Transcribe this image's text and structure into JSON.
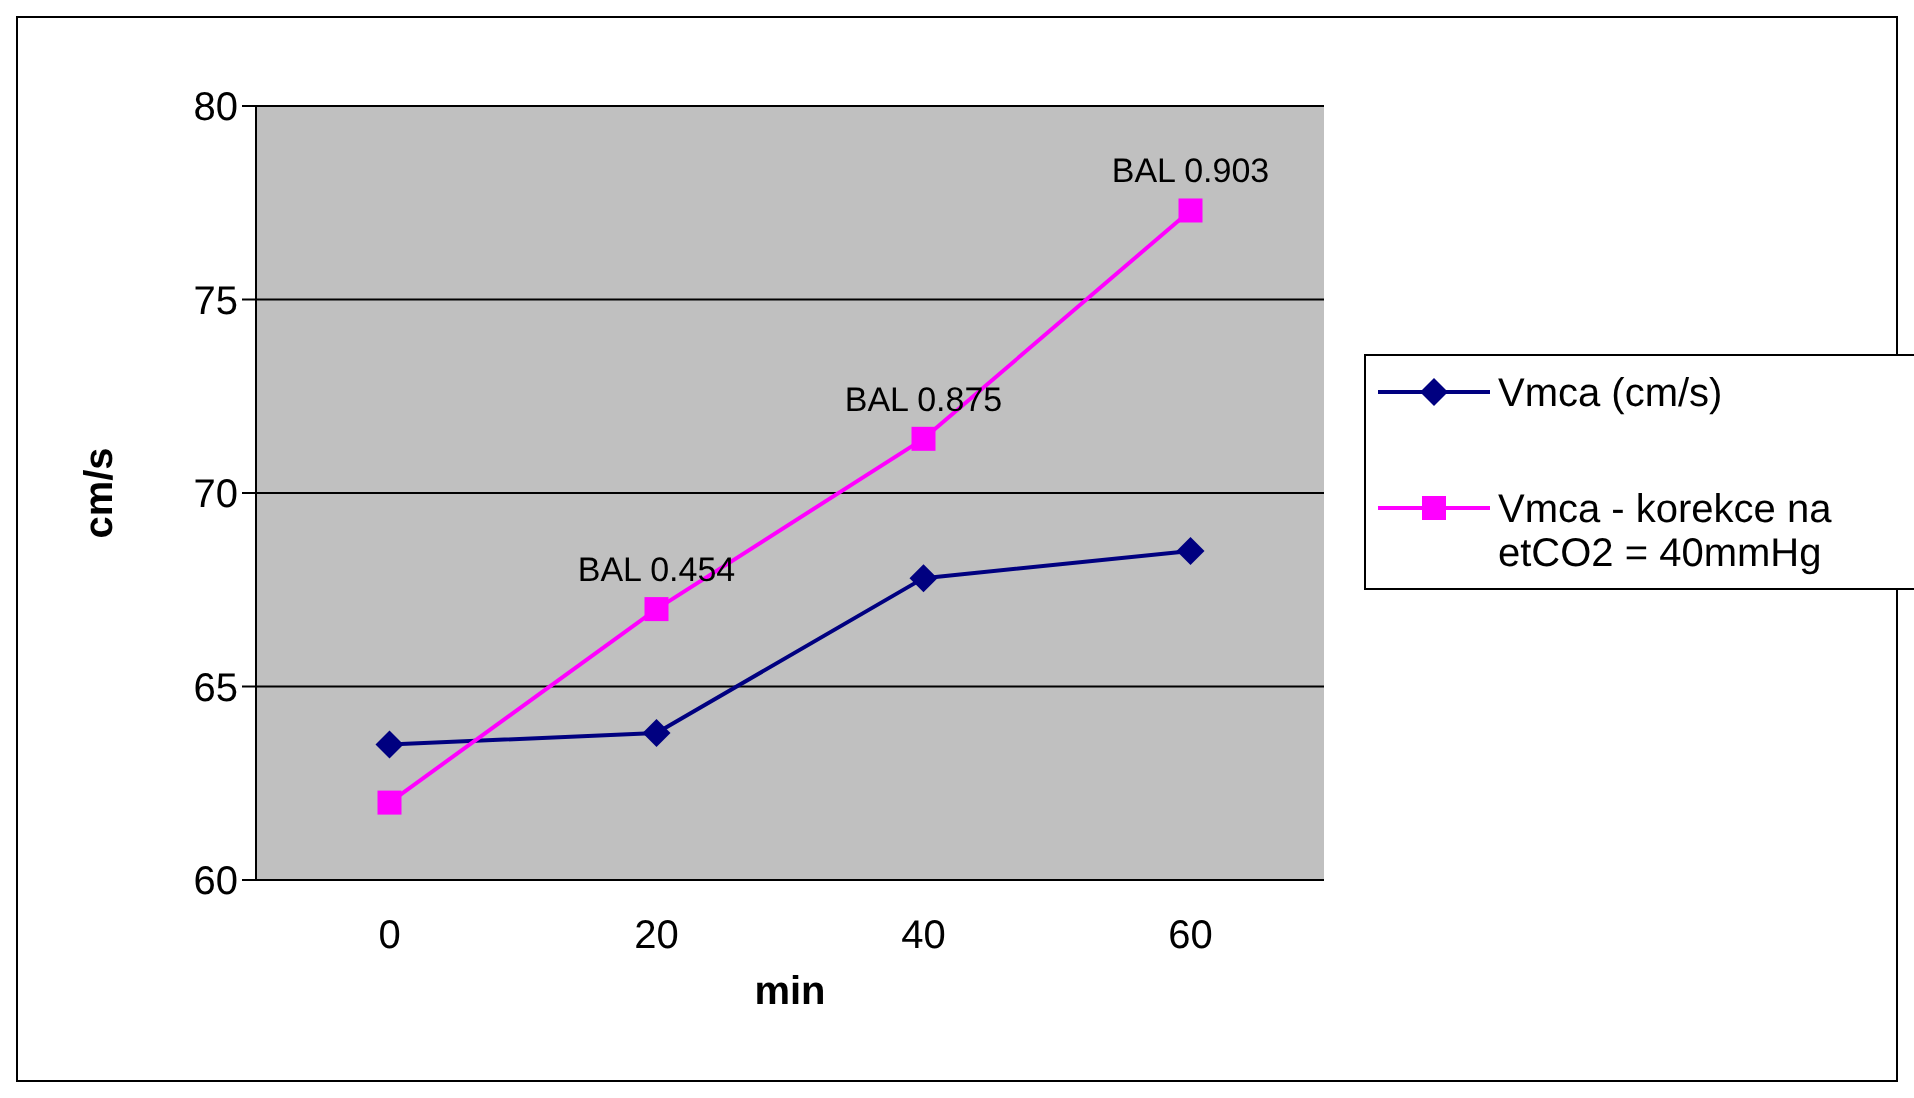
{
  "chart_data": {
    "type": "line",
    "xlabel": "min",
    "ylabel": "cm/s",
    "categories": [
      "0",
      "20",
      "40",
      "60"
    ],
    "series": [
      {
        "name": "Vmca (cm/s)",
        "color": "#000080",
        "marker": "diamond",
        "values": [
          63.5,
          63.8,
          67.8,
          68.5
        ]
      },
      {
        "name": "Vmca - korekce na etCO2 =  40mmHg",
        "color": "#ff00ff",
        "marker": "square",
        "values": [
          62.0,
          67.0,
          71.4,
          77.3
        ]
      }
    ],
    "ylim": [
      60,
      80
    ],
    "yticks": [
      60,
      65,
      70,
      75,
      80
    ],
    "grid": "y",
    "legend": "right",
    "annotations": [
      {
        "text": "BAL 0.454",
        "x": "20",
        "y": 67.0
      },
      {
        "text": "BAL 0.875",
        "x": "40",
        "y": 71.4
      },
      {
        "text": "BAL 0.903",
        "x": "60",
        "y": 77.3
      }
    ]
  }
}
